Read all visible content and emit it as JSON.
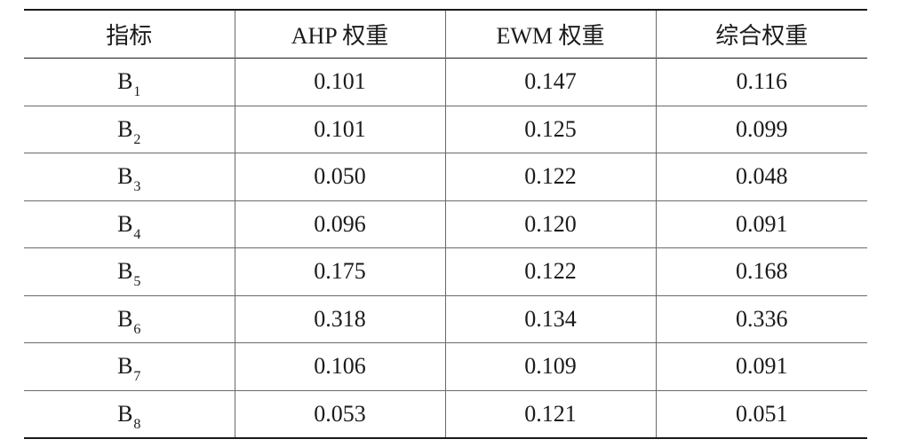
{
  "table": {
    "headers": [
      "指标",
      "AHP 权重",
      "EWM 权重",
      "综合权重"
    ],
    "rows": [
      {
        "index_letter": "B",
        "index_sub": "1",
        "ahp": "0.101",
        "ewm": "0.147",
        "combined": "0.116"
      },
      {
        "index_letter": "B",
        "index_sub": "2",
        "ahp": "0.101",
        "ewm": "0.125",
        "combined": "0.099"
      },
      {
        "index_letter": "B",
        "index_sub": "3",
        "ahp": "0.050",
        "ewm": "0.122",
        "combined": "0.048"
      },
      {
        "index_letter": "B",
        "index_sub": "4",
        "ahp": "0.096",
        "ewm": "0.120",
        "combined": "0.091"
      },
      {
        "index_letter": "B",
        "index_sub": "5",
        "ahp": "0.175",
        "ewm": "0.122",
        "combined": "0.168"
      },
      {
        "index_letter": "B",
        "index_sub": "6",
        "ahp": "0.318",
        "ewm": "0.134",
        "combined": "0.336"
      },
      {
        "index_letter": "B",
        "index_sub": "7",
        "ahp": "0.106",
        "ewm": "0.109",
        "combined": "0.091"
      },
      {
        "index_letter": "B",
        "index_sub": "8",
        "ahp": "0.053",
        "ewm": "0.121",
        "combined": "0.051"
      }
    ]
  }
}
